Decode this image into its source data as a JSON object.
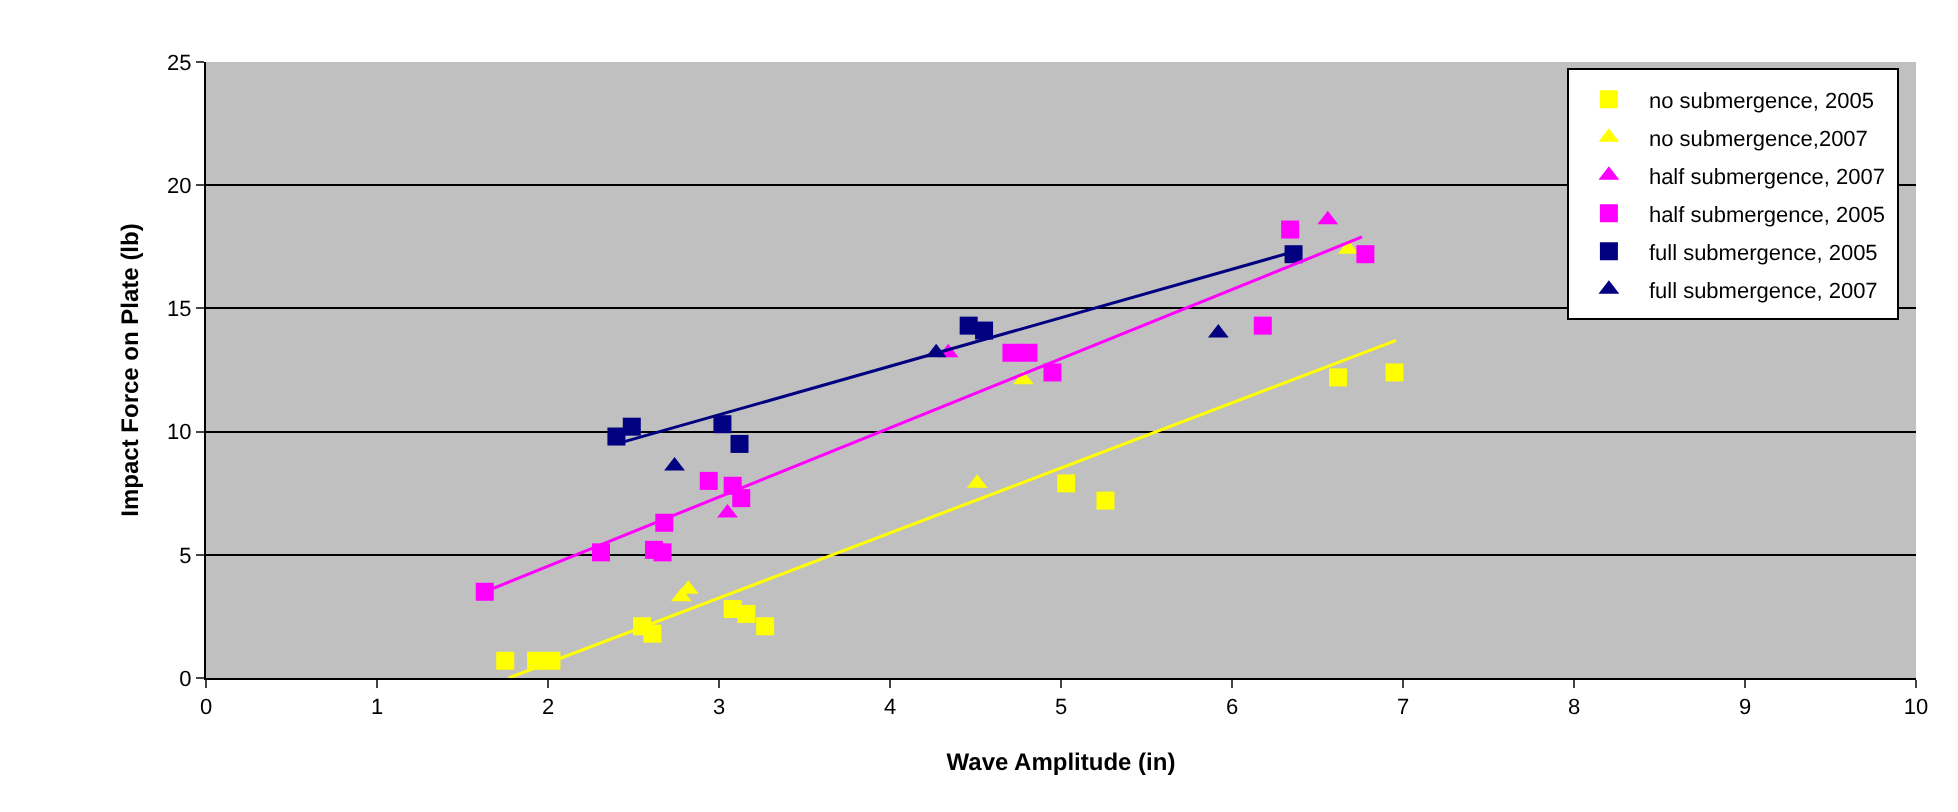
{
  "chart_data": {
    "type": "scatter",
    "xlabel": "Wave Amplitude (in)",
    "ylabel": "Impact Force on Plate (lb)",
    "xlim": [
      0,
      10
    ],
    "xticks": [
      0,
      1,
      2,
      3,
      4,
      5,
      6,
      7,
      8,
      9,
      10
    ],
    "ylim": [
      0,
      25
    ],
    "yticks": [
      0,
      5,
      10,
      15,
      20,
      25
    ],
    "grid": "y",
    "legend": "top right",
    "series": [
      {
        "name": "no submergence, 2005",
        "color": "#ffff00",
        "marker": "square",
        "x": [
          1.75,
          1.93,
          2.02,
          2.55,
          2.61,
          3.08,
          3.16,
          3.27,
          5.03,
          5.26,
          6.62,
          6.95
        ],
        "values": [
          0.7,
          0.7,
          0.7,
          2.1,
          1.8,
          2.8,
          2.6,
          2.1,
          7.9,
          7.2,
          12.2,
          12.4
        ]
      },
      {
        "name": "no submergence,2007",
        "color": "#ffff00",
        "marker": "triangle",
        "x": [
          2.78,
          2.82,
          4.51,
          4.78,
          6.68
        ],
        "values": [
          3.3,
          3.6,
          7.9,
          12.1,
          17.4
        ]
      },
      {
        "name": "half submergence, 2007",
        "color": "#ff00ff",
        "marker": "triangle",
        "x": [
          3.05,
          4.34,
          6.56
        ],
        "values": [
          6.7,
          13.2,
          18.6
        ]
      },
      {
        "name": "half submergence, 2005",
        "color": "#ff00ff",
        "marker": "square",
        "x": [
          1.63,
          2.31,
          2.62,
          2.67,
          2.68,
          2.94,
          3.08,
          3.13,
          4.71,
          4.81,
          4.95,
          6.18,
          6.34,
          6.78
        ],
        "values": [
          3.5,
          5.1,
          5.2,
          5.1,
          6.3,
          8.0,
          7.8,
          7.3,
          13.2,
          13.2,
          12.4,
          14.3,
          18.2,
          17.2
        ]
      },
      {
        "name": "full submergence, 2005",
        "color": "#000080",
        "marker": "square",
        "x": [
          2.4,
          2.49,
          3.02,
          3.12,
          4.46,
          4.55,
          6.36
        ],
        "values": [
          9.8,
          10.2,
          10.3,
          9.5,
          14.3,
          14.1,
          17.2
        ]
      },
      {
        "name": "full submergence, 2007",
        "color": "#000080",
        "marker": "triangle",
        "x": [
          2.74,
          4.27,
          5.92
        ],
        "values": [
          8.6,
          13.2,
          14.0
        ]
      },
      {
        "type": "line",
        "color": "#ffff00",
        "marker": "none",
        "x": [
          1.77,
          6.96
        ],
        "values": [
          0,
          13.7
        ]
      },
      {
        "type": "line",
        "color": "#ff00ff",
        "marker": "none",
        "x": [
          1.63,
          6.76
        ],
        "values": [
          3.5,
          17.9
        ]
      },
      {
        "type": "line",
        "color": "#000080",
        "marker": "none",
        "x": [
          2.4,
          6.36
        ],
        "values": [
          9.5,
          17.3
        ]
      }
    ]
  }
}
